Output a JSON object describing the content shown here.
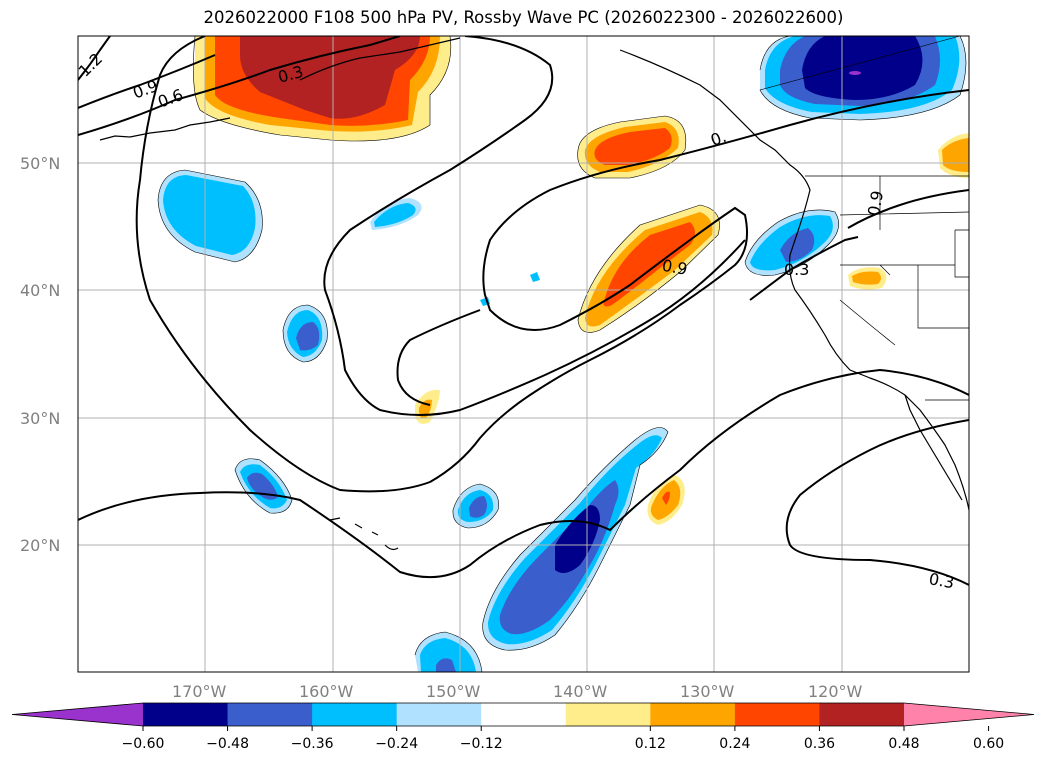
{
  "title": "2026022000 F108 500 hPa PV, Rossby Wave PC (2026022300 - 2026022600)",
  "axes": {
    "lat_labels": [
      "50°N",
      "40°N",
      "30°N",
      "20°N"
    ],
    "lon_labels": [
      "170°W",
      "160°W",
      "150°W",
      "140°W",
      "130°W",
      "120°W"
    ]
  },
  "contour_labels": [
    "1.2",
    "0.9",
    "0.6",
    "0.3",
    "0.9",
    "0.3",
    "0.",
    "0.9",
    "0.3",
    "0.3"
  ],
  "colorbar": {
    "ticks": [
      "−0.60",
      "−0.48",
      "−0.36",
      "−0.24",
      "−0.12",
      "0.12",
      "0.24",
      "0.36",
      "0.48",
      "0.60"
    ],
    "colors": [
      "#9a32cd",
      "#00008b",
      "#3a5fcd",
      "#00bfff",
      "#b0e2ff",
      "#ffffff",
      "#ffec8b",
      "#ffa500",
      "#ff4500",
      "#b22222",
      "#ff82ab"
    ]
  },
  "colors": {
    "neg_light": "#b0e2ff",
    "neg_1": "#00bfff",
    "neg_2": "#3a5fcd",
    "neg_3": "#00008b",
    "neg_4": "#9a32cd",
    "pos_light": "#ffec8b",
    "pos_1": "#ffa500",
    "pos_2": "#ff4500",
    "pos_3": "#b22222",
    "pos_4": "#ff82ab"
  }
}
